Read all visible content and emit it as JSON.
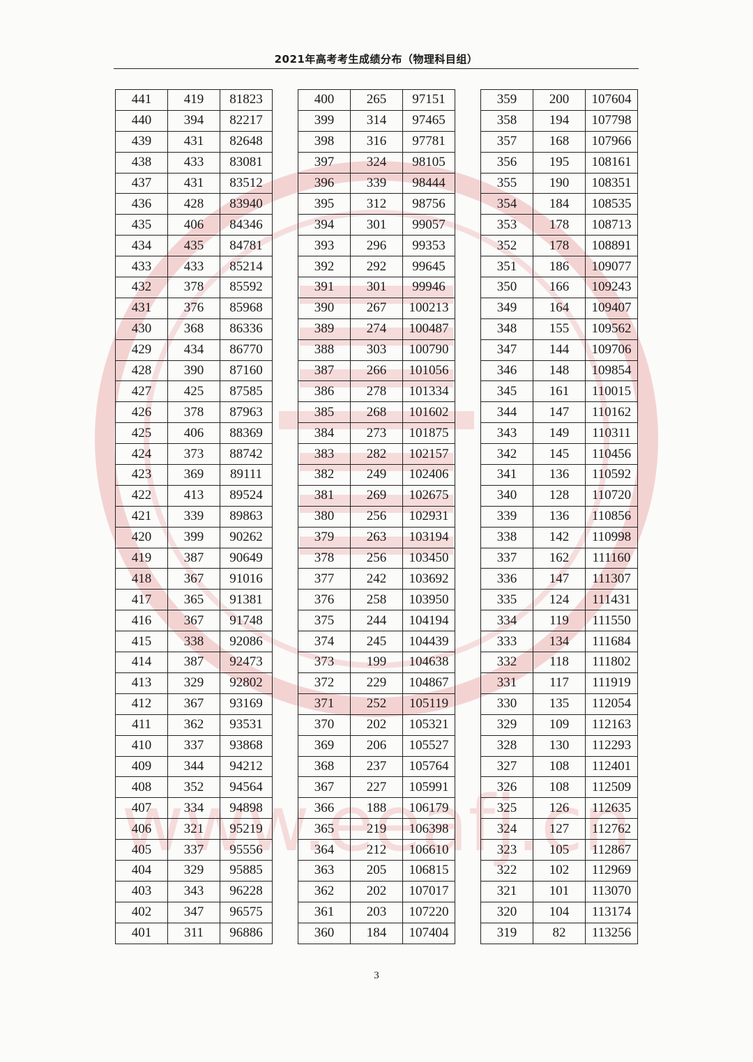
{
  "header": {
    "title": "2021年高考考生成绩分布（物理科目组）"
  },
  "watermark": {
    "text": "www.eeafj.cn",
    "color": "#e06a6a"
  },
  "columns": [
    [
      [
        "441",
        "419",
        "81823"
      ],
      [
        "440",
        "394",
        "82217"
      ],
      [
        "439",
        "431",
        "82648"
      ],
      [
        "438",
        "433",
        "83081"
      ],
      [
        "437",
        "431",
        "83512"
      ],
      [
        "436",
        "428",
        "83940"
      ],
      [
        "435",
        "406",
        "84346"
      ],
      [
        "434",
        "435",
        "84781"
      ],
      [
        "433",
        "433",
        "85214"
      ],
      [
        "432",
        "378",
        "85592"
      ],
      [
        "431",
        "376",
        "85968"
      ],
      [
        "430",
        "368",
        "86336"
      ],
      [
        "429",
        "434",
        "86770"
      ],
      [
        "428",
        "390",
        "87160"
      ],
      [
        "427",
        "425",
        "87585"
      ],
      [
        "426",
        "378",
        "87963"
      ],
      [
        "425",
        "406",
        "88369"
      ],
      [
        "424",
        "373",
        "88742"
      ],
      [
        "423",
        "369",
        "89111"
      ],
      [
        "422",
        "413",
        "89524"
      ],
      [
        "421",
        "339",
        "89863"
      ],
      [
        "420",
        "399",
        "90262"
      ],
      [
        "419",
        "387",
        "90649"
      ],
      [
        "418",
        "367",
        "91016"
      ],
      [
        "417",
        "365",
        "91381"
      ],
      [
        "416",
        "367",
        "91748"
      ],
      [
        "415",
        "338",
        "92086"
      ],
      [
        "414",
        "387",
        "92473"
      ],
      [
        "413",
        "329",
        "92802"
      ],
      [
        "412",
        "367",
        "93169"
      ],
      [
        "411",
        "362",
        "93531"
      ],
      [
        "410",
        "337",
        "93868"
      ],
      [
        "409",
        "344",
        "94212"
      ],
      [
        "408",
        "352",
        "94564"
      ],
      [
        "407",
        "334",
        "94898"
      ],
      [
        "406",
        "321",
        "95219"
      ],
      [
        "405",
        "337",
        "95556"
      ],
      [
        "404",
        "329",
        "95885"
      ],
      [
        "403",
        "343",
        "96228"
      ],
      [
        "402",
        "347",
        "96575"
      ],
      [
        "401",
        "311",
        "96886"
      ]
    ],
    [
      [
        "400",
        "265",
        "97151"
      ],
      [
        "399",
        "314",
        "97465"
      ],
      [
        "398",
        "316",
        "97781"
      ],
      [
        "397",
        "324",
        "98105"
      ],
      [
        "396",
        "339",
        "98444"
      ],
      [
        "395",
        "312",
        "98756"
      ],
      [
        "394",
        "301",
        "99057"
      ],
      [
        "393",
        "296",
        "99353"
      ],
      [
        "392",
        "292",
        "99645"
      ],
      [
        "391",
        "301",
        "99946"
      ],
      [
        "390",
        "267",
        "100213"
      ],
      [
        "389",
        "274",
        "100487"
      ],
      [
        "388",
        "303",
        "100790"
      ],
      [
        "387",
        "266",
        "101056"
      ],
      [
        "386",
        "278",
        "101334"
      ],
      [
        "385",
        "268",
        "101602"
      ],
      [
        "384",
        "273",
        "101875"
      ],
      [
        "383",
        "282",
        "102157"
      ],
      [
        "382",
        "249",
        "102406"
      ],
      [
        "381",
        "269",
        "102675"
      ],
      [
        "380",
        "256",
        "102931"
      ],
      [
        "379",
        "263",
        "103194"
      ],
      [
        "378",
        "256",
        "103450"
      ],
      [
        "377",
        "242",
        "103692"
      ],
      [
        "376",
        "258",
        "103950"
      ],
      [
        "375",
        "244",
        "104194"
      ],
      [
        "374",
        "245",
        "104439"
      ],
      [
        "373",
        "199",
        "104638"
      ],
      [
        "372",
        "229",
        "104867"
      ],
      [
        "371",
        "252",
        "105119"
      ],
      [
        "370",
        "202",
        "105321"
      ],
      [
        "369",
        "206",
        "105527"
      ],
      [
        "368",
        "237",
        "105764"
      ],
      [
        "367",
        "227",
        "105991"
      ],
      [
        "366",
        "188",
        "106179"
      ],
      [
        "365",
        "219",
        "106398"
      ],
      [
        "364",
        "212",
        "106610"
      ],
      [
        "363",
        "205",
        "106815"
      ],
      [
        "362",
        "202",
        "107017"
      ],
      [
        "361",
        "203",
        "107220"
      ],
      [
        "360",
        "184",
        "107404"
      ]
    ],
    [
      [
        "359",
        "200",
        "107604"
      ],
      [
        "358",
        "194",
        "107798"
      ],
      [
        "357",
        "168",
        "107966"
      ],
      [
        "356",
        "195",
        "108161"
      ],
      [
        "355",
        "190",
        "108351"
      ],
      [
        "354",
        "184",
        "108535"
      ],
      [
        "353",
        "178",
        "108713"
      ],
      [
        "352",
        "178",
        "108891"
      ],
      [
        "351",
        "186",
        "109077"
      ],
      [
        "350",
        "166",
        "109243"
      ],
      [
        "349",
        "164",
        "109407"
      ],
      [
        "348",
        "155",
        "109562"
      ],
      [
        "347",
        "144",
        "109706"
      ],
      [
        "346",
        "148",
        "109854"
      ],
      [
        "345",
        "161",
        "110015"
      ],
      [
        "344",
        "147",
        "110162"
      ],
      [
        "343",
        "149",
        "110311"
      ],
      [
        "342",
        "145",
        "110456"
      ],
      [
        "341",
        "136",
        "110592"
      ],
      [
        "340",
        "128",
        "110720"
      ],
      [
        "339",
        "136",
        "110856"
      ],
      [
        "338",
        "142",
        "110998"
      ],
      [
        "337",
        "162",
        "111160"
      ],
      [
        "336",
        "147",
        "111307"
      ],
      [
        "335",
        "124",
        "111431"
      ],
      [
        "334",
        "119",
        "111550"
      ],
      [
        "333",
        "134",
        "111684"
      ],
      [
        "332",
        "118",
        "111802"
      ],
      [
        "331",
        "117",
        "111919"
      ],
      [
        "330",
        "135",
        "112054"
      ],
      [
        "329",
        "109",
        "112163"
      ],
      [
        "328",
        "130",
        "112293"
      ],
      [
        "327",
        "108",
        "112401"
      ],
      [
        "326",
        "108",
        "112509"
      ],
      [
        "325",
        "126",
        "112635"
      ],
      [
        "324",
        "127",
        "112762"
      ],
      [
        "323",
        "105",
        "112867"
      ],
      [
        "322",
        "102",
        "112969"
      ],
      [
        "321",
        "101",
        "113070"
      ],
      [
        "320",
        "104",
        "113174"
      ],
      [
        "319",
        "82",
        "113256"
      ]
    ]
  ],
  "footer": {
    "page_number": "3"
  }
}
